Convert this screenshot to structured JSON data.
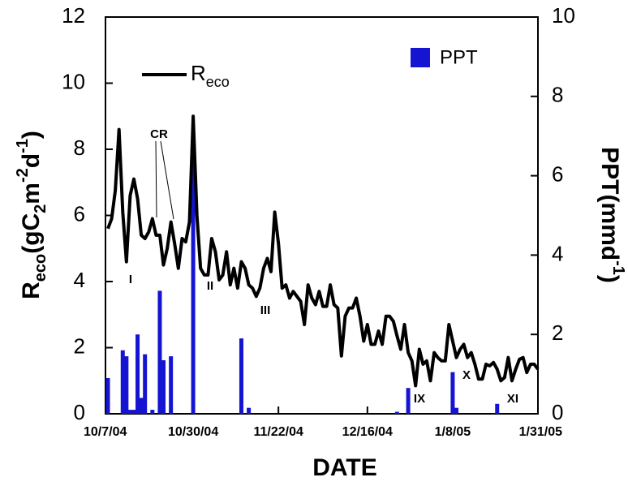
{
  "chart_data": {
    "type": "line",
    "x_label": "DATE",
    "y_label": "Reco(gC2m-2d-1)",
    "y2_label": "PPT(mmd-1)",
    "xlim": [
      "10/7/04",
      "1/31/05"
    ],
    "xticks": [
      "10/7/04",
      "10/30/04",
      "11/22/04",
      "12/16/04",
      "1/8/05",
      "1/31/05"
    ],
    "ylim": [
      0,
      12
    ],
    "yticks": [
      0,
      2,
      4,
      6,
      8,
      10,
      12
    ],
    "y2lim": [
      0,
      10
    ],
    "y2ticks": [
      0,
      2,
      4,
      6,
      8,
      10
    ],
    "grid": false,
    "annotations": [
      "CR",
      "I",
      "II",
      "III",
      "IX",
      "X",
      "XI"
    ],
    "series": [
      {
        "name": "Reco",
        "color": "#000000",
        "x": [
          "10/7/04",
          "10/8/04",
          "10/9/04",
          "10/10/04",
          "10/11/04",
          "10/12/04",
          "10/13/04",
          "10/14/04",
          "10/15/04",
          "10/16/04",
          "10/17/04",
          "10/18/04",
          "10/19/04",
          "10/20/04",
          "10/21/04",
          "10/22/04",
          "10/23/04",
          "10/24/04",
          "10/25/04",
          "10/26/04",
          "10/27/04",
          "10/28/04",
          "10/29/04",
          "10/30/04",
          "10/31/04",
          "11/1/04",
          "11/2/04",
          "11/3/04",
          "11/4/04",
          "11/5/04",
          "11/6/04",
          "11/7/04",
          "11/8/04",
          "11/9/04",
          "11/10/04",
          "11/11/04",
          "11/12/04",
          "11/13/04",
          "11/14/04",
          "11/15/04",
          "11/16/04",
          "11/17/04",
          "11/18/04",
          "11/19/04",
          "11/20/04",
          "11/21/04",
          "11/22/04",
          "11/23/04",
          "11/24/04",
          "11/25/04",
          "11/26/04",
          "11/27/04",
          "11/28/04",
          "11/29/04",
          "11/30/04",
          "12/1/04",
          "12/2/04",
          "12/3/04",
          "12/4/04",
          "12/5/04",
          "12/6/04",
          "12/7/04",
          "12/8/04",
          "12/9/04",
          "12/10/04",
          "12/11/04",
          "12/12/04",
          "12/13/04",
          "12/14/04",
          "12/15/04",
          "12/16/04",
          "12/17/04",
          "12/18/04",
          "12/19/04",
          "12/20/04",
          "12/21/04",
          "12/22/04",
          "12/23/04",
          "12/24/04",
          "12/25/04",
          "12/26/04",
          "12/27/04",
          "12/28/04",
          "12/29/04",
          "12/30/04",
          "12/31/04",
          "1/1/05",
          "1/2/05",
          "1/3/05",
          "1/4/05",
          "1/5/05",
          "1/6/05",
          "1/7/05",
          "1/8/05",
          "1/9/05",
          "1/10/05",
          "1/11/05",
          "1/12/05",
          "1/13/05",
          "1/14/05",
          "1/15/05",
          "1/16/05",
          "1/17/05",
          "1/18/05",
          "1/19/05",
          "1/20/05",
          "1/21/05",
          "1/22/05",
          "1/23/05",
          "1/24/05",
          "1/25/05",
          "1/26/05",
          "1/27/05",
          "1/28/05",
          "1/29/05",
          "1/30/05",
          "1/31/05"
        ],
        "values": [
          5.6,
          5.9,
          6.75,
          8.6,
          6.1,
          4.6,
          6.6,
          7.1,
          6.5,
          5.4,
          5.3,
          5.5,
          5.9,
          5.4,
          5.4,
          4.5,
          5.0,
          5.8,
          5.15,
          4.4,
          5.3,
          5.2,
          5.8,
          9.0,
          6.0,
          4.4,
          4.2,
          4.2,
          5.3,
          4.9,
          4.05,
          4.2,
          4.9,
          3.9,
          4.4,
          3.8,
          4.6,
          4.4,
          3.9,
          3.8,
          3.55,
          3.8,
          4.4,
          4.7,
          4.3,
          6.1,
          5.15,
          3.8,
          3.9,
          3.5,
          3.7,
          3.55,
          3.4,
          2.7,
          3.9,
          3.5,
          3.3,
          3.7,
          3.25,
          3.25,
          3.9,
          3.3,
          3.2,
          1.75,
          2.95,
          3.2,
          3.2,
          3.5,
          2.95,
          2.2,
          2.7,
          2.1,
          2.1,
          2.5,
          2.1,
          2.95,
          2.95,
          2.8,
          2.35,
          1.95,
          2.7,
          1.85,
          1.6,
          0.85,
          1.95,
          1.5,
          1.6,
          1.0,
          1.85,
          1.7,
          1.6,
          1.6,
          2.7,
          2.2,
          1.7,
          1.95,
          2.1,
          1.7,
          1.85,
          1.5,
          1.05,
          1.05,
          1.5,
          1.45,
          1.55,
          1.35,
          1.0,
          1.1,
          1.7,
          1.0,
          1.35,
          1.65,
          1.7,
          1.25,
          1.5,
          1.5,
          1.35
        ]
      },
      {
        "name": "PPT",
        "type": "bar",
        "axis": "y2",
        "color": "#1414d2",
        "x": [
          "10/7/04",
          "10/11/04",
          "10/12/04",
          "10/13/04",
          "10/14/04",
          "10/15/04",
          "10/16/04",
          "10/17/04",
          "10/19/04",
          "10/21/04",
          "10/22/04",
          "10/24/04",
          "10/30/04",
          "11/12/04",
          "11/14/04",
          "12/24/04",
          "12/27/04",
          "1/8/05",
          "1/9/05",
          "1/20/05"
        ],
        "values": [
          0.9,
          1.6,
          1.45,
          0.1,
          0.1,
          2.0,
          0.4,
          1.5,
          0.1,
          3.1,
          1.35,
          1.45,
          6.35,
          1.9,
          0.15,
          0.05,
          0.65,
          1.05,
          0.15,
          0.25
        ]
      }
    ]
  }
}
